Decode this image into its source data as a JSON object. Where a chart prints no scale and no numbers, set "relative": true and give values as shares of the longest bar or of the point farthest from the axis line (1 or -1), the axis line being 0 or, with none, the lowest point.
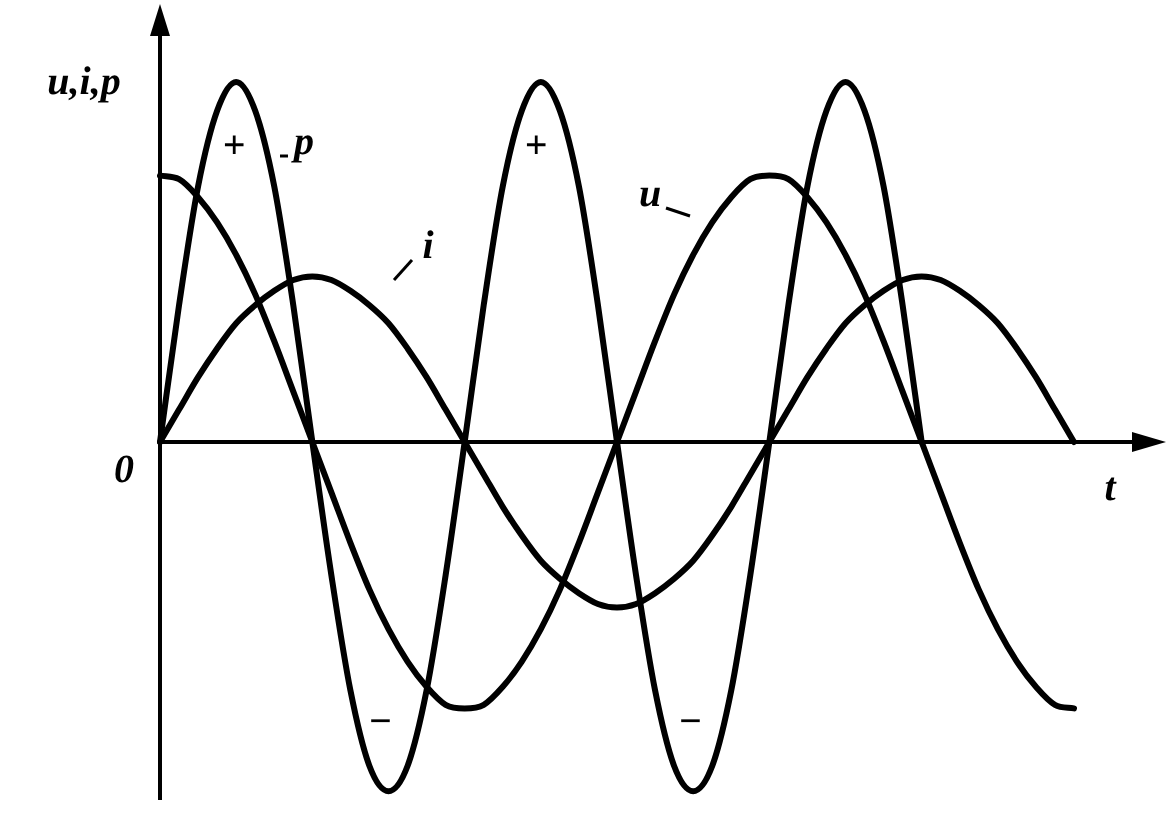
{
  "chart_data": {
    "type": "line",
    "relative": true,
    "legend": "top left",
    "xlabel": "t",
    "ylabel": "u,i,p",
    "annotations": [
      "0",
      "+",
      "+",
      "−",
      "−"
    ],
    "categories": [
      null,
      null,
      null,
      null,
      null,
      null,
      null,
      null,
      null,
      null,
      null,
      null,
      null,
      null,
      null,
      null,
      null,
      null,
      null,
      null,
      null,
      null,
      null,
      null,
      null,
      null,
      null,
      null,
      null,
      null,
      null,
      null,
      null,
      null,
      null,
      null,
      null,
      null,
      null,
      null,
      null,
      null,
      null,
      null,
      null,
      null,
      null,
      null,
      null
    ],
    "series": [
      {
        "name": "u",
        "color": "#000000",
        "values": [
          0.74,
          0.73,
          0.68,
          0.61,
          0.52,
          0.41,
          0.28,
          0.14,
          0,
          -0.14,
          -0.28,
          -0.41,
          -0.52,
          -0.61,
          -0.68,
          -0.73,
          -0.74,
          -0.73,
          -0.68,
          -0.61,
          -0.52,
          -0.41,
          -0.28,
          -0.14,
          0,
          0.14,
          0.28,
          0.41,
          0.52,
          0.61,
          0.68,
          0.73,
          0.74,
          0.73,
          0.68,
          0.61,
          0.52,
          0.41,
          0.28,
          0.14,
          0,
          -0.14,
          -0.28,
          -0.41,
          -0.52,
          -0.61,
          -0.68,
          -0.73,
          -0.74
        ]
      },
      {
        "name": "i",
        "color": "#000000",
        "values": [
          0,
          0.09,
          0.18,
          0.26,
          0.33,
          0.38,
          0.42,
          0.45,
          0.46,
          0.45,
          0.42,
          0.38,
          0.33,
          0.26,
          0.18,
          0.09,
          0,
          -0.09,
          -0.18,
          -0.26,
          -0.33,
          -0.38,
          -0.42,
          -0.45,
          -0.46,
          -0.45,
          -0.42,
          -0.38,
          -0.33,
          -0.26,
          -0.18,
          -0.09,
          0,
          0.09,
          0.18,
          0.26,
          0.33,
          0.38,
          0.42,
          0.45,
          0.46,
          0.45,
          0.42,
          0.38,
          0.33,
          0.26,
          0.18,
          0.09,
          0
        ]
      },
      {
        "name": "p",
        "color": "#000000",
        "values": [
          0,
          0.38,
          0.71,
          0.92,
          1,
          0.92,
          0.71,
          0.38,
          0,
          -0.37,
          -0.69,
          -0.9,
          -0.97,
          -0.9,
          -0.69,
          -0.37,
          0,
          0.38,
          0.71,
          0.92,
          1,
          0.92,
          0.71,
          0.38,
          0,
          -0.37,
          -0.69,
          -0.9,
          -0.97,
          -0.9,
          -0.69,
          -0.37,
          0,
          0.38,
          0.71,
          0.92,
          1,
          0.92,
          0.71,
          0.38,
          0,
          null,
          null,
          null,
          null,
          null,
          null,
          null,
          null
        ]
      }
    ]
  }
}
